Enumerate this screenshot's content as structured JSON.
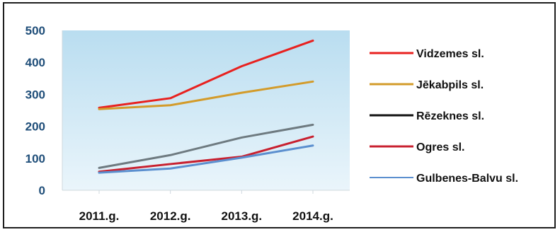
{
  "chart_data": {
    "type": "line",
    "title": "",
    "xlabel": "",
    "ylabel": "",
    "categories": [
      "2011.g.",
      "2012.g.",
      "2013.g.",
      "2014.g."
    ],
    "ylim": [
      0,
      500
    ],
    "yticks": [
      0,
      100,
      200,
      300,
      400,
      500
    ],
    "grid": false,
    "legend_position": "right",
    "plot_background": "light-blue-gradient",
    "series": [
      {
        "name": "Vidzemes sl.",
        "color": "#e8211f",
        "values": [
          258,
          288,
          388,
          468
        ]
      },
      {
        "name": "Jēkabpils sl.",
        "color": "#d39b2a",
        "values": [
          254,
          266,
          305,
          340
        ]
      },
      {
        "name": "Rēzeknes sl.",
        "color": "#6e7a80",
        "legend_color": "#111111",
        "values": [
          70,
          110,
          165,
          205
        ]
      },
      {
        "name": "Ogres sl.",
        "color": "#c8202f",
        "values": [
          58,
          82,
          105,
          168
        ]
      },
      {
        "name": "Gulbenes-Balvu sl.",
        "color": "#5b8fcf",
        "values": [
          55,
          68,
          102,
          140
        ]
      }
    ]
  }
}
